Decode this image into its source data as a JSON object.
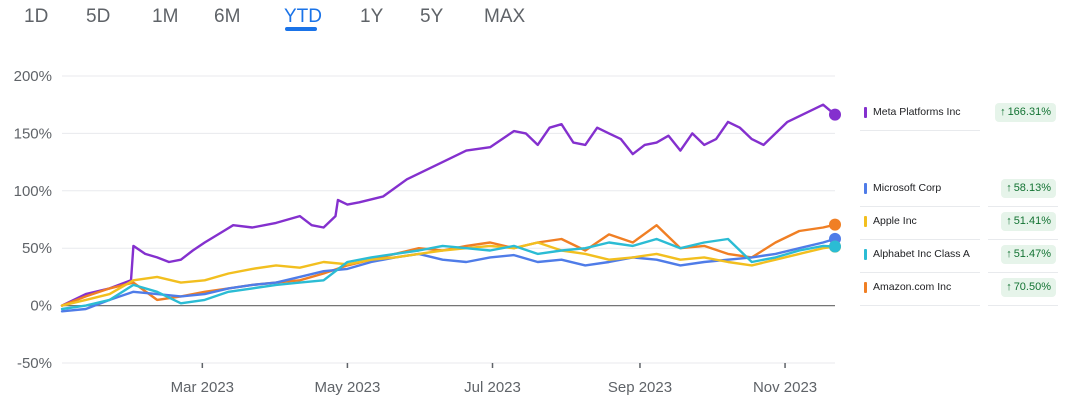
{
  "tabs": [
    {
      "label": "1D",
      "active": false
    },
    {
      "label": "5D",
      "active": false
    },
    {
      "label": "1M",
      "active": false
    },
    {
      "label": "6M",
      "active": false
    },
    {
      "label": "YTD",
      "active": true
    },
    {
      "label": "1Y",
      "active": false
    },
    {
      "label": "5Y",
      "active": false
    },
    {
      "label": "MAX",
      "active": false
    }
  ],
  "legend": [
    {
      "name": "Meta Platforms Inc",
      "change": "166.31%",
      "arrow": "↑",
      "color": "#8430ce"
    },
    {
      "name": "Microsoft Corp",
      "change": "58.13%",
      "arrow": "↑",
      "color": "#4f7ce8"
    },
    {
      "name": "Apple Inc",
      "change": "51.41%",
      "arrow": "↑",
      "color": "#f2bf1f"
    },
    {
      "name": "Alphabet Inc Class A",
      "change": "51.47%",
      "arrow": "↑",
      "color": "#2bbcd4"
    },
    {
      "name": "Amazon.com Inc",
      "change": "70.50%",
      "arrow": "↑",
      "color": "#f07f24"
    }
  ],
  "chart_data": {
    "type": "line",
    "title": "",
    "xlabel": "",
    "ylabel": "",
    "ylim": [
      -50,
      200
    ],
    "yticks": [
      "200%",
      "150%",
      "100%",
      "50%",
      "0%",
      "-50%"
    ],
    "ytick_values": [
      200,
      150,
      100,
      50,
      0,
      -50
    ],
    "xticks": [
      "Mar 2023",
      "May 2023",
      "Jul 2023",
      "Sep 2023",
      "Nov 2023"
    ],
    "xtick_days": [
      59,
      120,
      181,
      243,
      304
    ],
    "x_domain_days": [
      0,
      325
    ],
    "grid": true,
    "legend_position": "right",
    "series": [
      {
        "name": "Meta Platforms Inc",
        "color": "#8430ce",
        "x": [
          0,
          10,
          20,
          29,
          30,
          35,
          40,
          45,
          50,
          55,
          60,
          68,
          72,
          80,
          90,
          100,
          105,
          110,
          115,
          116,
          120,
          125,
          135,
          145,
          150,
          155,
          160,
          170,
          180,
          190,
          195,
          200,
          205,
          210,
          215,
          220,
          225,
          230,
          235,
          240,
          245,
          250,
          255,
          260,
          265,
          270,
          275,
          280,
          285,
          290,
          295,
          300,
          305,
          310,
          315,
          320,
          325
        ],
        "y": [
          0,
          10,
          15,
          22,
          52,
          45,
          42,
          38,
          40,
          48,
          55,
          65,
          70,
          68,
          72,
          78,
          70,
          68,
          78,
          92,
          88,
          90,
          95,
          110,
          115,
          120,
          125,
          135,
          138,
          152,
          150,
          140,
          155,
          158,
          142,
          140,
          155,
          150,
          145,
          132,
          140,
          142,
          148,
          135,
          150,
          140,
          145,
          160,
          155,
          145,
          140,
          150,
          160,
          165,
          170,
          175,
          166.31
        ]
      },
      {
        "name": "Amazon.com Inc",
        "color": "#f07f24",
        "x": [
          0,
          10,
          20,
          30,
          40,
          50,
          60,
          70,
          80,
          90,
          100,
          110,
          120,
          130,
          140,
          150,
          160,
          170,
          180,
          190,
          200,
          210,
          220,
          230,
          240,
          250,
          260,
          270,
          280,
          290,
          300,
          310,
          320,
          325
        ],
        "y": [
          0,
          8,
          15,
          20,
          5,
          8,
          12,
          15,
          18,
          20,
          22,
          28,
          35,
          40,
          45,
          50,
          48,
          52,
          55,
          50,
          55,
          58,
          48,
          62,
          55,
          70,
          50,
          52,
          45,
          42,
          55,
          65,
          68,
          70.5
        ]
      },
      {
        "name": "Microsoft Corp",
        "color": "#4f7ce8",
        "x": [
          0,
          10,
          20,
          30,
          40,
          50,
          60,
          70,
          80,
          90,
          100,
          110,
          120,
          130,
          140,
          150,
          160,
          170,
          180,
          190,
          200,
          210,
          220,
          230,
          240,
          250,
          260,
          270,
          280,
          290,
          300,
          310,
          320,
          325
        ],
        "y": [
          -5,
          -3,
          5,
          12,
          10,
          8,
          10,
          15,
          18,
          20,
          25,
          30,
          32,
          38,
          42,
          45,
          40,
          38,
          42,
          44,
          38,
          40,
          35,
          38,
          42,
          40,
          35,
          38,
          40,
          42,
          45,
          50,
          55,
          58.13
        ]
      },
      {
        "name": "Apple Inc",
        "color": "#f2bf1f",
        "x": [
          0,
          10,
          20,
          30,
          40,
          50,
          60,
          70,
          80,
          90,
          100,
          110,
          120,
          130,
          140,
          150,
          160,
          170,
          180,
          190,
          200,
          210,
          220,
          230,
          240,
          250,
          260,
          270,
          280,
          290,
          300,
          310,
          320,
          325
        ],
        "y": [
          0,
          5,
          10,
          22,
          25,
          20,
          22,
          28,
          32,
          35,
          33,
          38,
          36,
          40,
          42,
          45,
          48,
          50,
          52,
          50,
          55,
          48,
          45,
          40,
          42,
          45,
          40,
          42,
          38,
          35,
          40,
          45,
          50,
          51.41
        ]
      },
      {
        "name": "Alphabet Inc Class A",
        "color": "#2bbcd4",
        "x": [
          0,
          10,
          20,
          30,
          40,
          50,
          60,
          70,
          80,
          90,
          100,
          110,
          120,
          130,
          140,
          150,
          160,
          170,
          180,
          190,
          200,
          210,
          220,
          230,
          240,
          250,
          260,
          270,
          280,
          290,
          300,
          310,
          320,
          325
        ],
        "y": [
          -3,
          0,
          5,
          18,
          12,
          2,
          5,
          12,
          15,
          18,
          20,
          22,
          38,
          42,
          45,
          48,
          52,
          50,
          48,
          52,
          45,
          48,
          50,
          55,
          52,
          58,
          50,
          55,
          58,
          38,
          42,
          48,
          52,
          51.47
        ]
      }
    ]
  }
}
